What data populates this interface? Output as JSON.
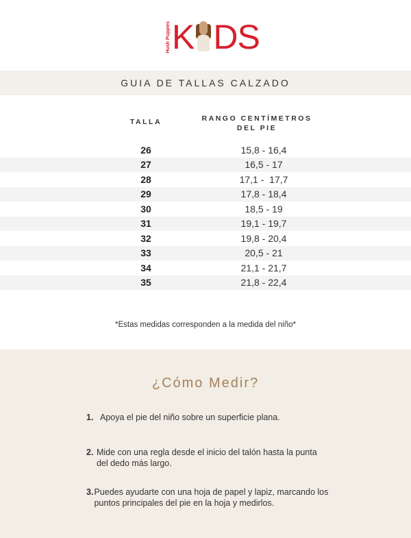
{
  "logo": {
    "brand": "Hush Puppies",
    "text_left": "K",
    "text_right": "DS"
  },
  "title": "GUIA DE TALLAS CALZADO",
  "table": {
    "headers": [
      "TALLA",
      "RANGO CENTÍMETROS",
      "DEL PIE"
    ],
    "rows": [
      {
        "size": "26",
        "range": "15,8 - 16,4"
      },
      {
        "size": "27",
        "range": "16,5 - 17"
      },
      {
        "size": "28",
        "range": "17,1 -  17,7"
      },
      {
        "size": "29",
        "range": "17,8 - 18,4"
      },
      {
        "size": "30",
        "range": "18,5 - 19"
      },
      {
        "size": "31",
        "range": "19,1 - 19,7"
      },
      {
        "size": "32",
        "range": "19,8 - 20,4"
      },
      {
        "size": "33",
        "range": "20,5 - 21"
      },
      {
        "size": "34",
        "range": "21,1 - 21,7"
      },
      {
        "size": "35",
        "range": "21,8 - 22,4"
      }
    ]
  },
  "note": "*Estas medidas corresponden a la medida del niño*",
  "how": {
    "title": "¿Cómo Medir?",
    "steps": [
      {
        "n": "1.",
        "text": "Apoya el pie del niño sobre un superficie plana."
      },
      {
        "n": "2.",
        "text": "Mide con una regla desde el inicio del talón hasta la punta del dedo más largo."
      },
      {
        "n": "3.",
        "text": "Puedes ayudarte con una hoja de papel y lapiz, marcando los puntos principales del pie en la hoja y medirlos."
      }
    ]
  },
  "colors": {
    "brand": "#d6202e",
    "accent": "#a5815a",
    "band": "#f3efe9"
  }
}
